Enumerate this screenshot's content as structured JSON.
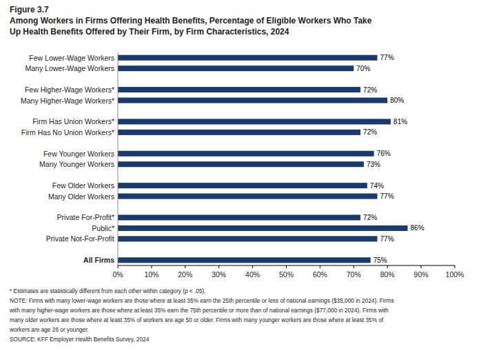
{
  "chart_data": {
    "type": "bar",
    "orientation": "horizontal",
    "title": "Figure 3.7",
    "subtitle": [
      "Among Workers in Firms Offering Health Benefits, Percentage of Eligible Workers Who Take",
      "Up Health Benefits Offered by Their Firm, by Firm Characteristics, 2024"
    ],
    "categories": [
      "Few Lower-Wage Workers",
      "Many Lower-Wage Workers",
      null,
      "Few Higher-Wage Workers*",
      "Many Higher-Wage Workers*",
      null,
      "Firm Has Union Workers*",
      "Firm Has No Union Workers*",
      null,
      "Few Younger Workers",
      "Many Younger Workers",
      null,
      "Few Older Workers",
      "Many Older Workers",
      null,
      "Private For-Profit*",
      "Public*",
      "Private Not-For-Profit",
      null,
      "All Firms"
    ],
    "values": [
      77,
      70,
      null,
      72,
      80,
      null,
      81,
      72,
      null,
      76,
      73,
      null,
      74,
      77,
      null,
      72,
      86,
      77,
      null,
      75
    ],
    "value_labels": [
      "77%",
      "70%",
      null,
      "72%",
      "80%",
      null,
      "81%",
      "72%",
      null,
      "76%",
      "73%",
      null,
      "74%",
      "77%",
      null,
      "72%",
      "86%",
      "77%",
      null,
      "75%"
    ],
    "data_labels": true,
    "color": "#1a3a6b",
    "xlim": [
      0,
      100
    ],
    "xticks": [
      {
        "value": 0,
        "label": "0%"
      },
      {
        "value": 10,
        "label": "10%"
      },
      {
        "value": 20,
        "label": "20%"
      },
      {
        "value": 30,
        "label": "30%"
      },
      {
        "value": 40,
        "label": "40%"
      },
      {
        "value": 50,
        "label": "50%"
      },
      {
        "value": 60,
        "label": "60%"
      },
      {
        "value": 70,
        "label": "70%"
      },
      {
        "value": 80,
        "label": "80%"
      },
      {
        "value": 90,
        "label": "90%"
      },
      {
        "value": 100,
        "label": "100%"
      }
    ],
    "grid": false,
    "annotations": [
      "* Estimates are statistically different from each other within category (p < .05).",
      "NOTE: Firms with many lower-wage workers are those where at least 35% earn the 25th percentile or less of national earnings ($35,000 in 2024). Firms",
      "with many higher-wage workers are those where at least 35% earn the 75th percentile or more than of national earnings ($77,000 in 2024). Firms with",
      "many older workers are those where at least 35% of workers are age 50 or older. Firms with many younger workers are those where at least 35% of",
      "workers are age 26 or younger.",
      "SOURCE: KFF Employer Health Benefits Survey, 2024"
    ]
  }
}
